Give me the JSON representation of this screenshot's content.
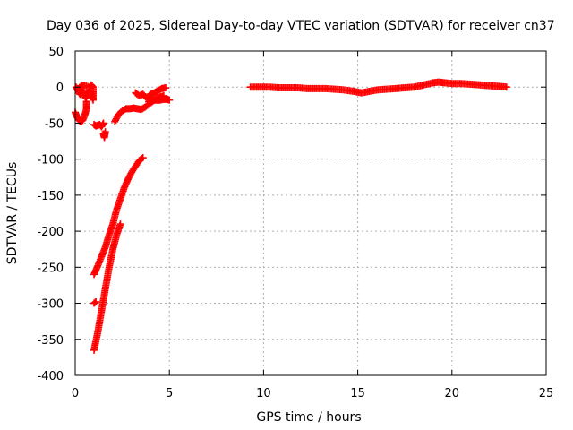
{
  "chart_data": {
    "type": "scatter",
    "title": "Day 036 of 2025, Sidereal Day-to-day VTEC variation (SDTVAR) for receiver cn37",
    "xlabel": "GPS time / hours",
    "ylabel": "SDTVAR / TECUs",
    "xlim": [
      0,
      25
    ],
    "ylim": [
      -400,
      50
    ],
    "xticks": [
      0,
      5,
      10,
      15,
      20,
      25
    ],
    "yticks": [
      50,
      0,
      -50,
      -100,
      -150,
      -200,
      -250,
      -300,
      -350,
      -400
    ],
    "grid": true,
    "marker": "plus",
    "color": "#ff0000",
    "series": [
      {
        "name": "SDTVAR",
        "segments": [
          [
            [
              0.0,
              -35
            ],
            [
              0.1,
              -42
            ],
            [
              0.2,
              -46
            ],
            [
              0.3,
              -48
            ],
            [
              0.4,
              -46
            ],
            [
              0.5,
              -40
            ],
            [
              0.6,
              -30
            ],
            [
              0.6,
              -20
            ]
          ],
          [
            [
              0.05,
              0
            ],
            [
              0.15,
              -5
            ],
            [
              0.25,
              -10
            ],
            [
              0.35,
              -5
            ],
            [
              0.45,
              -8
            ],
            [
              0.55,
              -15
            ],
            [
              0.65,
              -12
            ],
            [
              0.75,
              -5
            ],
            [
              0.85,
              -10
            ],
            [
              0.95,
              -18
            ],
            [
              0.95,
              0
            ],
            [
              0.85,
              3
            ],
            [
              0.75,
              0
            ],
            [
              0.5,
              2
            ],
            [
              0.3,
              1
            ],
            [
              0.15,
              -2
            ]
          ],
          [
            [
              1.0,
              -52
            ],
            [
              1.1,
              -54
            ],
            [
              1.2,
              -53
            ],
            [
              1.3,
              -52
            ],
            [
              1.4,
              -55
            ],
            [
              1.5,
              -50
            ]
          ],
          [
            [
              1.5,
              -65
            ],
            [
              1.55,
              -70
            ],
            [
              1.6,
              -62
            ]
          ],
          [
            [
              1.0,
              -300
            ],
            [
              1.1,
              -298
            ]
          ],
          [
            [
              1.0,
              -260
            ],
            [
              1.2,
              -248
            ],
            [
              1.4,
              -235
            ],
            [
              1.6,
              -222
            ],
            [
              1.8,
              -205
            ],
            [
              2.0,
              -190
            ],
            [
              2.2,
              -170
            ],
            [
              2.4,
              -155
            ],
            [
              2.6,
              -140
            ],
            [
              2.8,
              -128
            ],
            [
              3.0,
              -118
            ],
            [
              3.2,
              -110
            ],
            [
              3.4,
              -102
            ],
            [
              3.6,
              -98
            ]
          ],
          [
            [
              1.0,
              -365
            ],
            [
              1.2,
              -340
            ],
            [
              1.4,
              -310
            ],
            [
              1.6,
              -280
            ],
            [
              1.8,
              -250
            ],
            [
              2.0,
              -225
            ],
            [
              2.2,
              -205
            ],
            [
              2.4,
              -190
            ]
          ],
          [
            [
              2.1,
              -48
            ],
            [
              2.3,
              -38
            ],
            [
              2.5,
              -33
            ],
            [
              2.7,
              -30
            ],
            [
              2.9,
              -30
            ],
            [
              3.1,
              -29
            ],
            [
              3.3,
              -30
            ],
            [
              3.5,
              -31
            ],
            [
              3.7,
              -28
            ],
            [
              3.9,
              -24
            ],
            [
              4.1,
              -20
            ],
            [
              4.3,
              -16
            ],
            [
              4.5,
              -14
            ],
            [
              4.7,
              -12
            ]
          ],
          [
            [
              3.2,
              -8
            ],
            [
              3.4,
              -12
            ],
            [
              3.6,
              -10
            ],
            [
              3.8,
              -15
            ],
            [
              4.0,
              -10
            ],
            [
              4.2,
              -8
            ],
            [
              4.4,
              -5
            ],
            [
              4.6,
              -2
            ],
            [
              4.8,
              -1
            ]
          ],
          [
            [
              3.9,
              -20
            ],
            [
              4.1,
              -18
            ],
            [
              4.3,
              -18
            ],
            [
              4.5,
              -18
            ],
            [
              4.7,
              -17
            ],
            [
              4.9,
              -17
            ],
            [
              5.0,
              -18
            ]
          ],
          [
            [
              9.3,
              0
            ],
            [
              9.8,
              0
            ],
            [
              10.3,
              0
            ],
            [
              10.8,
              -1
            ],
            [
              11.3,
              -1
            ],
            [
              11.8,
              -1
            ],
            [
              12.3,
              -2
            ],
            [
              12.8,
              -2
            ],
            [
              13.3,
              -2
            ],
            [
              13.8,
              -3
            ],
            [
              14.3,
              -4
            ],
            [
              14.8,
              -6
            ],
            [
              15.2,
              -8
            ],
            [
              15.6,
              -6
            ],
            [
              16.0,
              -4
            ],
            [
              16.5,
              -3
            ],
            [
              17.0,
              -2
            ],
            [
              17.5,
              -1
            ],
            [
              18.0,
              0
            ],
            [
              18.5,
              3
            ],
            [
              19.0,
              6
            ],
            [
              19.3,
              7
            ],
            [
              19.6,
              6
            ],
            [
              20.0,
              5
            ],
            [
              20.5,
              5
            ],
            [
              21.0,
              4
            ],
            [
              21.5,
              3
            ],
            [
              22.0,
              2
            ],
            [
              22.5,
              1
            ],
            [
              22.9,
              0
            ]
          ]
        ]
      }
    ]
  }
}
